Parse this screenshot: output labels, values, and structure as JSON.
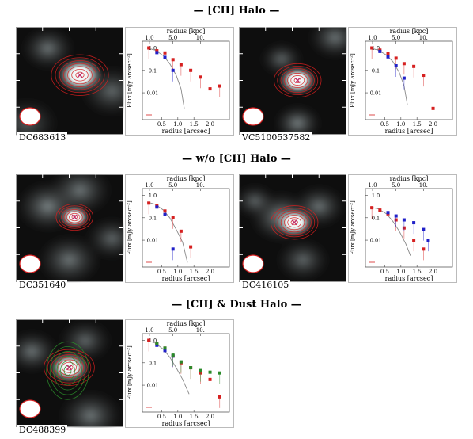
{
  "sections": [
    {
      "title": "— [CII]  Halo —"
    },
    {
      "title": "— w/o [CII]  Halo —"
    },
    {
      "title": "— [CII] & Dust Halo —"
    }
  ],
  "galaxies": [
    {
      "name": "DC683613",
      "dust": false,
      "ciii": [
        [
          0.1,
          1.0
        ],
        [
          0.35,
          0.75
        ],
        [
          0.6,
          0.6
        ],
        [
          0.85,
          0.3
        ],
        [
          1.1,
          0.18
        ],
        [
          1.4,
          0.1
        ],
        [
          1.7,
          0.05
        ],
        [
          2.0,
          0.015
        ],
        [
          2.3,
          0.02
        ]
      ],
      "uv": [
        [
          0.35,
          0.62
        ],
        [
          0.6,
          0.38
        ],
        [
          0.85,
          0.1
        ]
      ],
      "psf": [
        [
          0.05,
          1.0
        ],
        [
          0.3,
          0.8
        ],
        [
          0.55,
          0.45
        ],
        [
          0.75,
          0.2
        ],
        [
          0.95,
          0.06
        ],
        [
          1.1,
          0.015
        ],
        [
          1.2,
          0.002
        ]
      ]
    },
    {
      "name": "VC5100537582",
      "dust": false,
      "ciii": [
        [
          0.1,
          1.0
        ],
        [
          0.35,
          0.8
        ],
        [
          0.6,
          0.55
        ],
        [
          0.85,
          0.35
        ],
        [
          1.1,
          0.2
        ],
        [
          1.4,
          0.15
        ],
        [
          1.7,
          0.06
        ],
        [
          2.0,
          0.002
        ]
      ],
      "uv": [
        [
          0.35,
          0.7
        ],
        [
          0.6,
          0.4
        ],
        [
          0.85,
          0.16
        ],
        [
          1.1,
          0.045
        ]
      ],
      "psf": [
        [
          0.05,
          1.0
        ],
        [
          0.3,
          0.8
        ],
        [
          0.55,
          0.48
        ],
        [
          0.75,
          0.25
        ],
        [
          0.95,
          0.08
        ],
        [
          1.1,
          0.02
        ],
        [
          1.2,
          0.003
        ]
      ]
    },
    {
      "name": "DC351640",
      "dust": false,
      "ciii": [
        [
          0.1,
          0.45
        ],
        [
          0.35,
          0.35
        ],
        [
          0.6,
          0.2
        ],
        [
          0.85,
          0.1
        ],
        [
          1.1,
          0.025
        ],
        [
          1.4,
          0.005
        ]
      ],
      "uv": [
        [
          0.35,
          0.3
        ],
        [
          0.6,
          0.14
        ],
        [
          0.85,
          0.004
        ]
      ],
      "psf": [
        [
          0.05,
          0.5
        ],
        [
          0.3,
          0.4
        ],
        [
          0.55,
          0.22
        ],
        [
          0.75,
          0.1
        ],
        [
          0.95,
          0.03
        ],
        [
          1.15,
          0.008
        ],
        [
          1.3,
          0.001
        ]
      ]
    },
    {
      "name": "DC416105",
      "dust": false,
      "ciii": [
        [
          0.1,
          0.28
        ],
        [
          0.35,
          0.22
        ],
        [
          0.6,
          0.15
        ],
        [
          0.85,
          0.08
        ],
        [
          1.1,
          0.035
        ],
        [
          1.4,
          0.01
        ],
        [
          1.7,
          0.004
        ]
      ],
      "uv": [
        [
          0.6,
          0.17
        ],
        [
          0.85,
          0.12
        ],
        [
          1.1,
          0.08
        ],
        [
          1.4,
          0.06
        ],
        [
          1.7,
          0.03
        ],
        [
          1.85,
          0.01
        ]
      ],
      "psf": [
        [
          0.05,
          0.3
        ],
        [
          0.3,
          0.25
        ],
        [
          0.55,
          0.15
        ],
        [
          0.75,
          0.07
        ],
        [
          0.95,
          0.025
        ],
        [
          1.15,
          0.007
        ],
        [
          1.3,
          0.002
        ]
      ]
    },
    {
      "name": "DC488399",
      "dust": true,
      "ciii": [
        [
          0.1,
          1.0
        ],
        [
          0.35,
          0.7
        ],
        [
          0.6,
          0.45
        ],
        [
          0.85,
          0.2
        ],
        [
          1.1,
          0.1
        ],
        [
          1.4,
          0.06
        ],
        [
          1.7,
          0.035
        ],
        [
          2.0,
          0.018
        ],
        [
          2.3,
          0.003
        ]
      ],
      "uv": [
        [
          0.35,
          0.6
        ],
        [
          0.6,
          0.35
        ],
        [
          0.85,
          0.2
        ]
      ],
      "dust_pts": [
        [
          0.35,
          0.7
        ],
        [
          0.6,
          0.45
        ],
        [
          0.85,
          0.22
        ],
        [
          1.1,
          0.11
        ],
        [
          1.4,
          0.06
        ],
        [
          1.7,
          0.045
        ],
        [
          2.0,
          0.038
        ],
        [
          2.3,
          0.035
        ]
      ],
      "psf": [
        [
          0.05,
          1.0
        ],
        [
          0.3,
          0.75
        ],
        [
          0.55,
          0.4
        ],
        [
          0.75,
          0.18
        ],
        [
          0.95,
          0.06
        ],
        [
          1.15,
          0.018
        ],
        [
          1.35,
          0.004
        ]
      ]
    }
  ],
  "axis": {
    "xlabel": "radius [arcsec]",
    "x2label": "radius [kpc]",
    "ylabel": "Flux [mJy arcsec⁻²]",
    "xticks": [
      "0.5",
      "1.0",
      "1.5",
      "2.0"
    ],
    "x2ticks": [
      "1.0",
      "5.0",
      "10."
    ],
    "yticks": [
      "1.0",
      "0.1",
      "0.01"
    ]
  },
  "colors": {
    "ciii": "#d62020",
    "uv": "#2020c8",
    "dust": "#2a8a2a",
    "psf": "#888888",
    "bg": "#0e0e0e"
  }
}
